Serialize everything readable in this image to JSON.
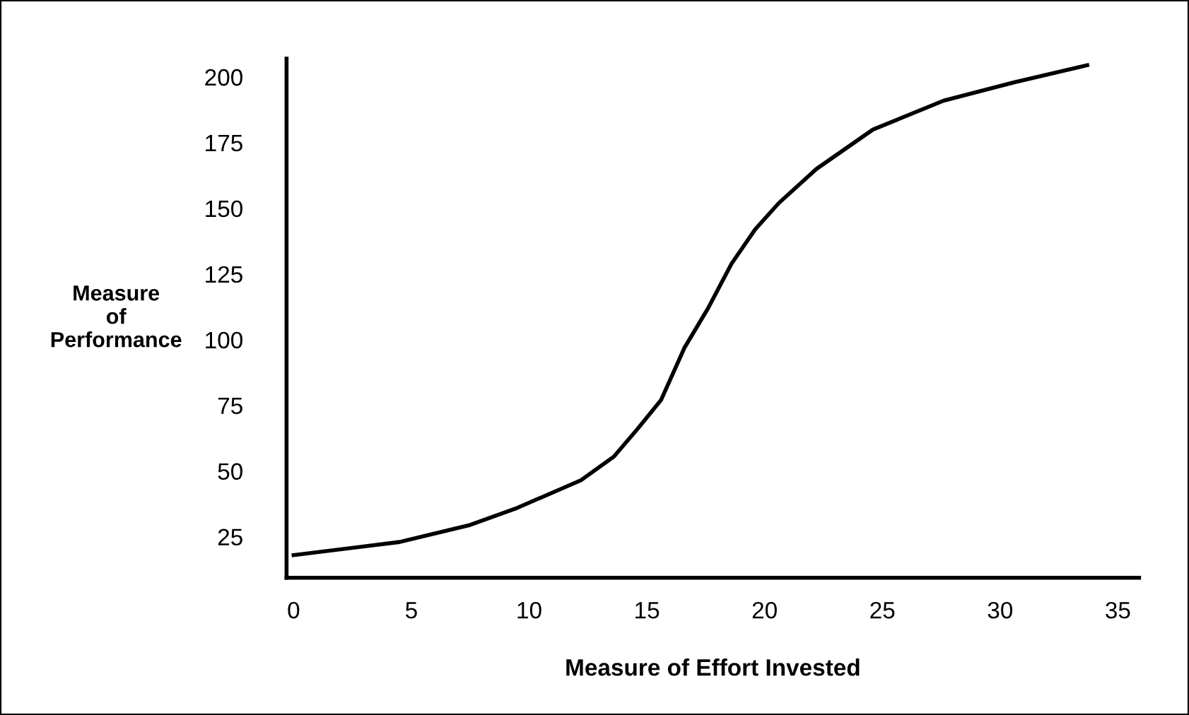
{
  "chart_data": {
    "type": "line",
    "xlabel": "Measure of Effort Invested",
    "ylabel": "Measure\nof\nPerformance",
    "series": [
      {
        "color": "#000000",
        "x": [
          0,
          4.5,
          7.5,
          9.5,
          12.2,
          13.6,
          14.6,
          15.6,
          16.6,
          17.6,
          18.6,
          19.6,
          20.6,
          22.2,
          24.6,
          27.6,
          30.6,
          33.7
        ],
        "values": [
          18,
          23,
          29.5,
          36,
          46.5,
          55.5,
          66,
          77,
          97,
          112,
          129,
          142,
          152,
          165,
          180,
          191,
          198,
          204.5
        ]
      }
    ],
    "xlim": [
      -0.3,
      35.9
    ],
    "ylim": [
      9.4,
      207
    ],
    "xticks": [
      0,
      5,
      10,
      15,
      20,
      25,
      30,
      35
    ],
    "yticks": [
      25,
      50,
      75,
      100,
      125,
      150,
      175,
      200
    ],
    "grid": false,
    "legend": false,
    "marker": "none",
    "line_style": "solid"
  }
}
